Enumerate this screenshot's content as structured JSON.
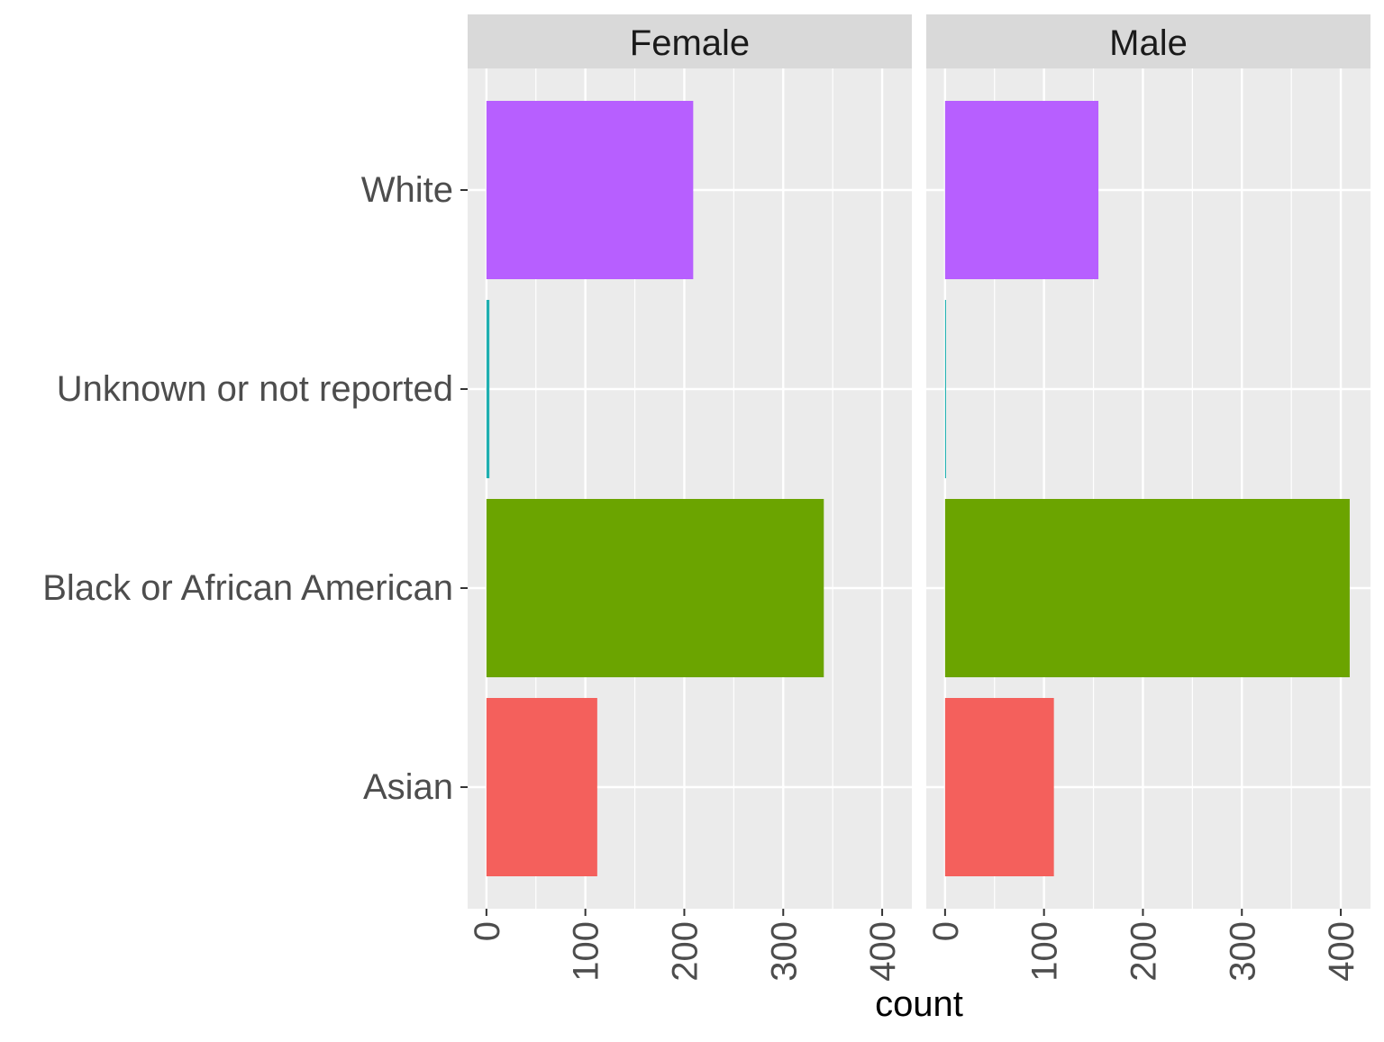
{
  "chart_data": {
    "type": "bar",
    "orientation": "horizontal",
    "facet_by": [
      "Female",
      "Male"
    ],
    "categories": [
      "White",
      "Unknown or not reported",
      "Black or African American",
      "Asian"
    ],
    "colors": {
      "White": "#B75FFF",
      "Unknown or not reported": "#1FAFB0",
      "Black or African American": "#6BA400",
      "Asian": "#F4605C"
    },
    "panels": [
      {
        "name": "Female",
        "values": {
          "White": 209,
          "Unknown or not reported": 3,
          "Black or African American": 341,
          "Asian": 112
        }
      },
      {
        "name": "Male",
        "values": {
          "White": 155,
          "Unknown or not reported": 1,
          "Black or African American": 409,
          "Asian": 110
        }
      }
    ],
    "xlabel": "count",
    "ylabel": "",
    "xlim": [
      -19,
      430
    ],
    "xticks": [
      0,
      100,
      200,
      300,
      400
    ],
    "grid": true,
    "legend": "none"
  }
}
